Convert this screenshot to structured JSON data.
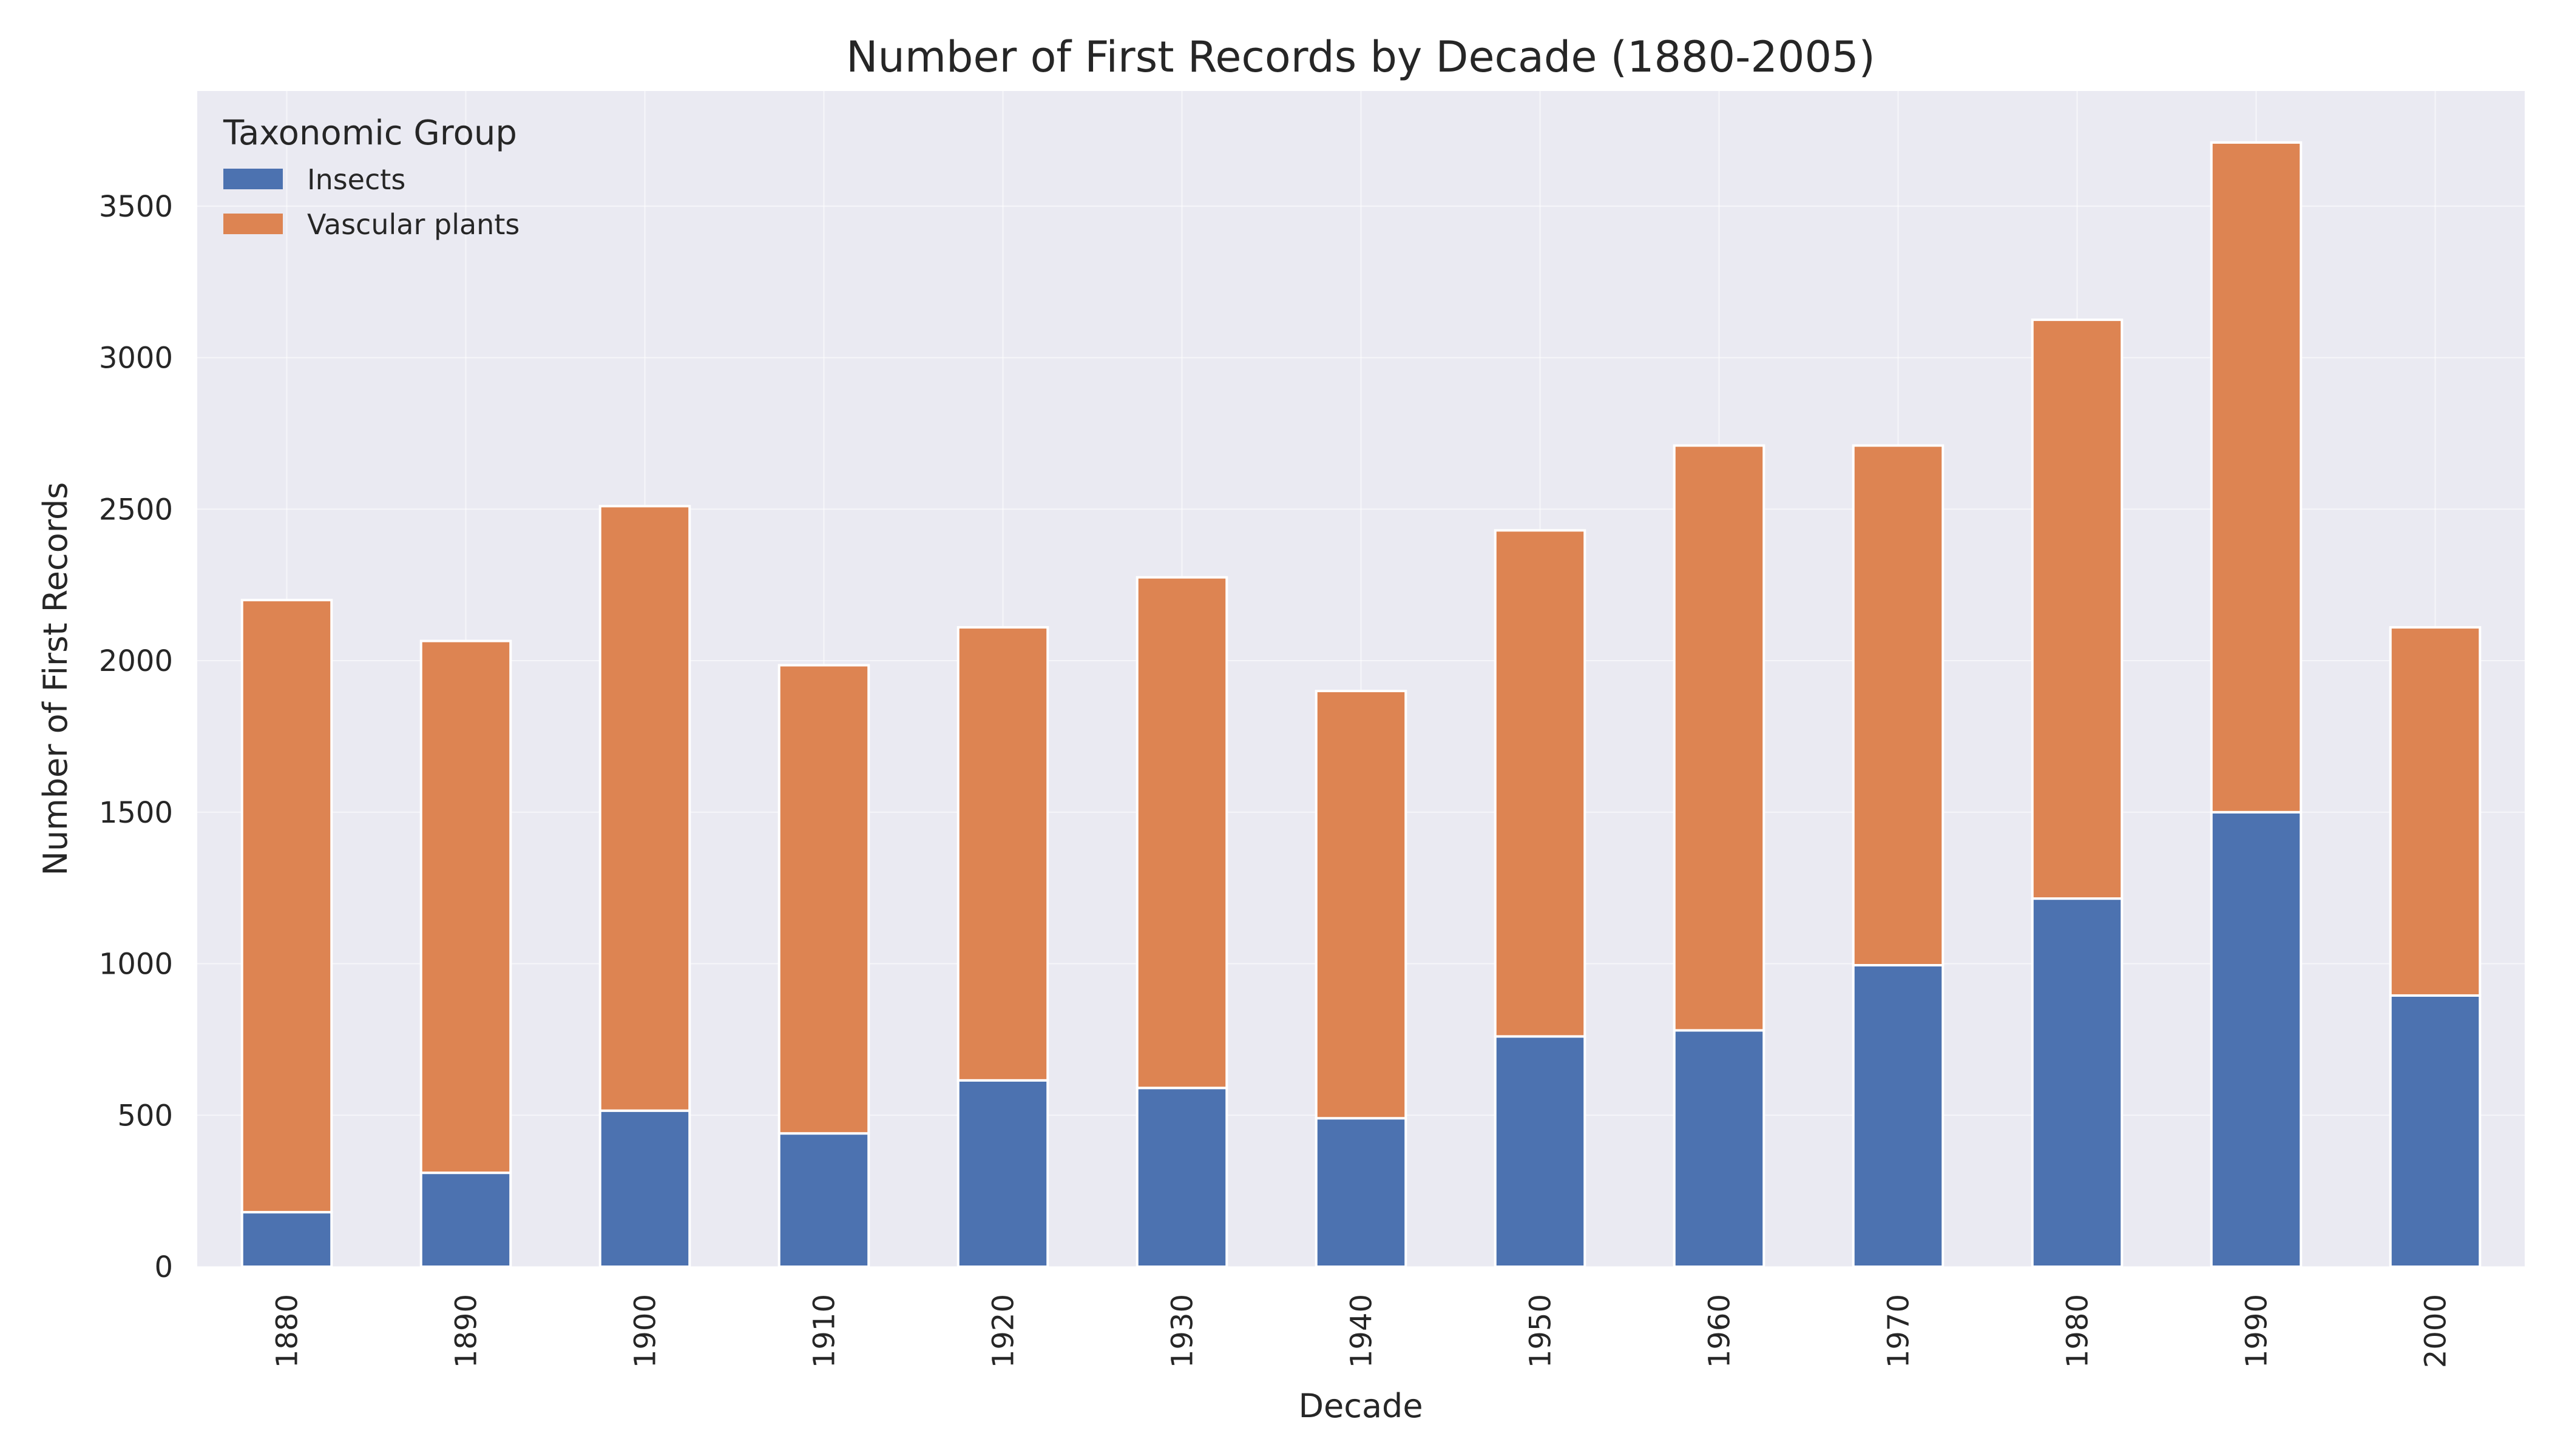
{
  "chart_data": {
    "type": "bar",
    "stacked": true,
    "title": "Number of First Records by Decade (1880-2005)",
    "xlabel": "Decade",
    "ylabel": "Number of First Records",
    "categories": [
      "1880",
      "1890",
      "1900",
      "1910",
      "1920",
      "1930",
      "1940",
      "1950",
      "1960",
      "1970",
      "1980",
      "1990",
      "2000"
    ],
    "series": [
      {
        "name": "Insects",
        "color": "#4c72b0",
        "values": [
          180,
          310,
          515,
          440,
          615,
          590,
          490,
          760,
          780,
          995,
          1215,
          1500,
          895
        ]
      },
      {
        "name": "Vascular plants",
        "color": "#dd8452",
        "values": [
          2020,
          1755,
          1995,
          1545,
          1495,
          1685,
          1410,
          1670,
          1930,
          1715,
          1910,
          2210,
          1215
        ]
      }
    ],
    "ylim": [
      0,
      3880
    ],
    "yticks": [
      0,
      500,
      1000,
      1500,
      2000,
      2500,
      3000,
      3500
    ],
    "legend": {
      "title": "Taxonomic Group",
      "placement": "top-left"
    },
    "grid": true,
    "plot_background": "#eaeaf2"
  }
}
